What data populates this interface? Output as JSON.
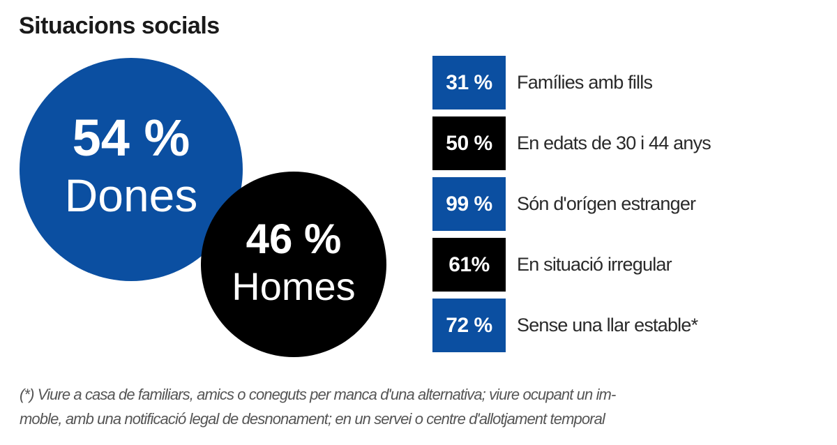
{
  "title": "Situacions socials",
  "colors": {
    "blue": "#0b4fa1",
    "black": "#000000",
    "text": "#2a2a2a",
    "footnote": "#555555"
  },
  "gender": {
    "women": {
      "value": "54 %",
      "label": "Dones",
      "color": "#0b4fa1"
    },
    "men": {
      "value": "46 %",
      "label": "Homes",
      "color": "#000000"
    }
  },
  "stats": [
    {
      "value": "31 %",
      "label": "Famílies amb fills",
      "color": "#0b4fa1"
    },
    {
      "value": "50 %",
      "label": "En edats de 30 i 44 anys",
      "color": "#000000"
    },
    {
      "value": "99 %",
      "label": "Són d'orígen estranger",
      "color": "#0b4fa1"
    },
    {
      "value": "61%",
      "label": "En situació irregular",
      "color": "#000000"
    },
    {
      "value": "72 %",
      "label": "Sense una llar estable*",
      "color": "#0b4fa1"
    }
  ],
  "footnote": {
    "line1": "(*) Viure a casa de familiars, amics o coneguts per manca d'una alternativa; viure ocupant un im-",
    "line2": "moble, amb una notificació legal de desnonament; en un servei o centre d'allotjament temporal"
  },
  "chart_data": {
    "type": "bar",
    "title": "Situacions socials",
    "subcharts": [
      {
        "type": "pie",
        "description": "Gender split shown as two proportional circles",
        "categories": [
          "Dones",
          "Homes"
        ],
        "values": [
          54,
          46
        ],
        "unit": "%",
        "colors": [
          "#0b4fa1",
          "#000000"
        ]
      },
      {
        "type": "table",
        "description": "Percentage boxes with labels",
        "categories": [
          "Famílies amb fills",
          "En edats de 30 i 44 anys",
          "Són d'orígen estranger",
          "En situació irregular",
          "Sense una llar estable*"
        ],
        "values": [
          31,
          50,
          99,
          61,
          72
        ],
        "unit": "%",
        "colors": [
          "#0b4fa1",
          "#000000",
          "#0b4fa1",
          "#000000",
          "#0b4fa1"
        ]
      }
    ],
    "annotations": [
      "(*) Viure a casa de familiars, amics o coneguts per manca d'una alternativa; viure ocupant un immoble, amb una notificació legal de desnonament; en un servei o centre d'allotjament temporal"
    ],
    "xlabel": "",
    "ylabel": ""
  }
}
